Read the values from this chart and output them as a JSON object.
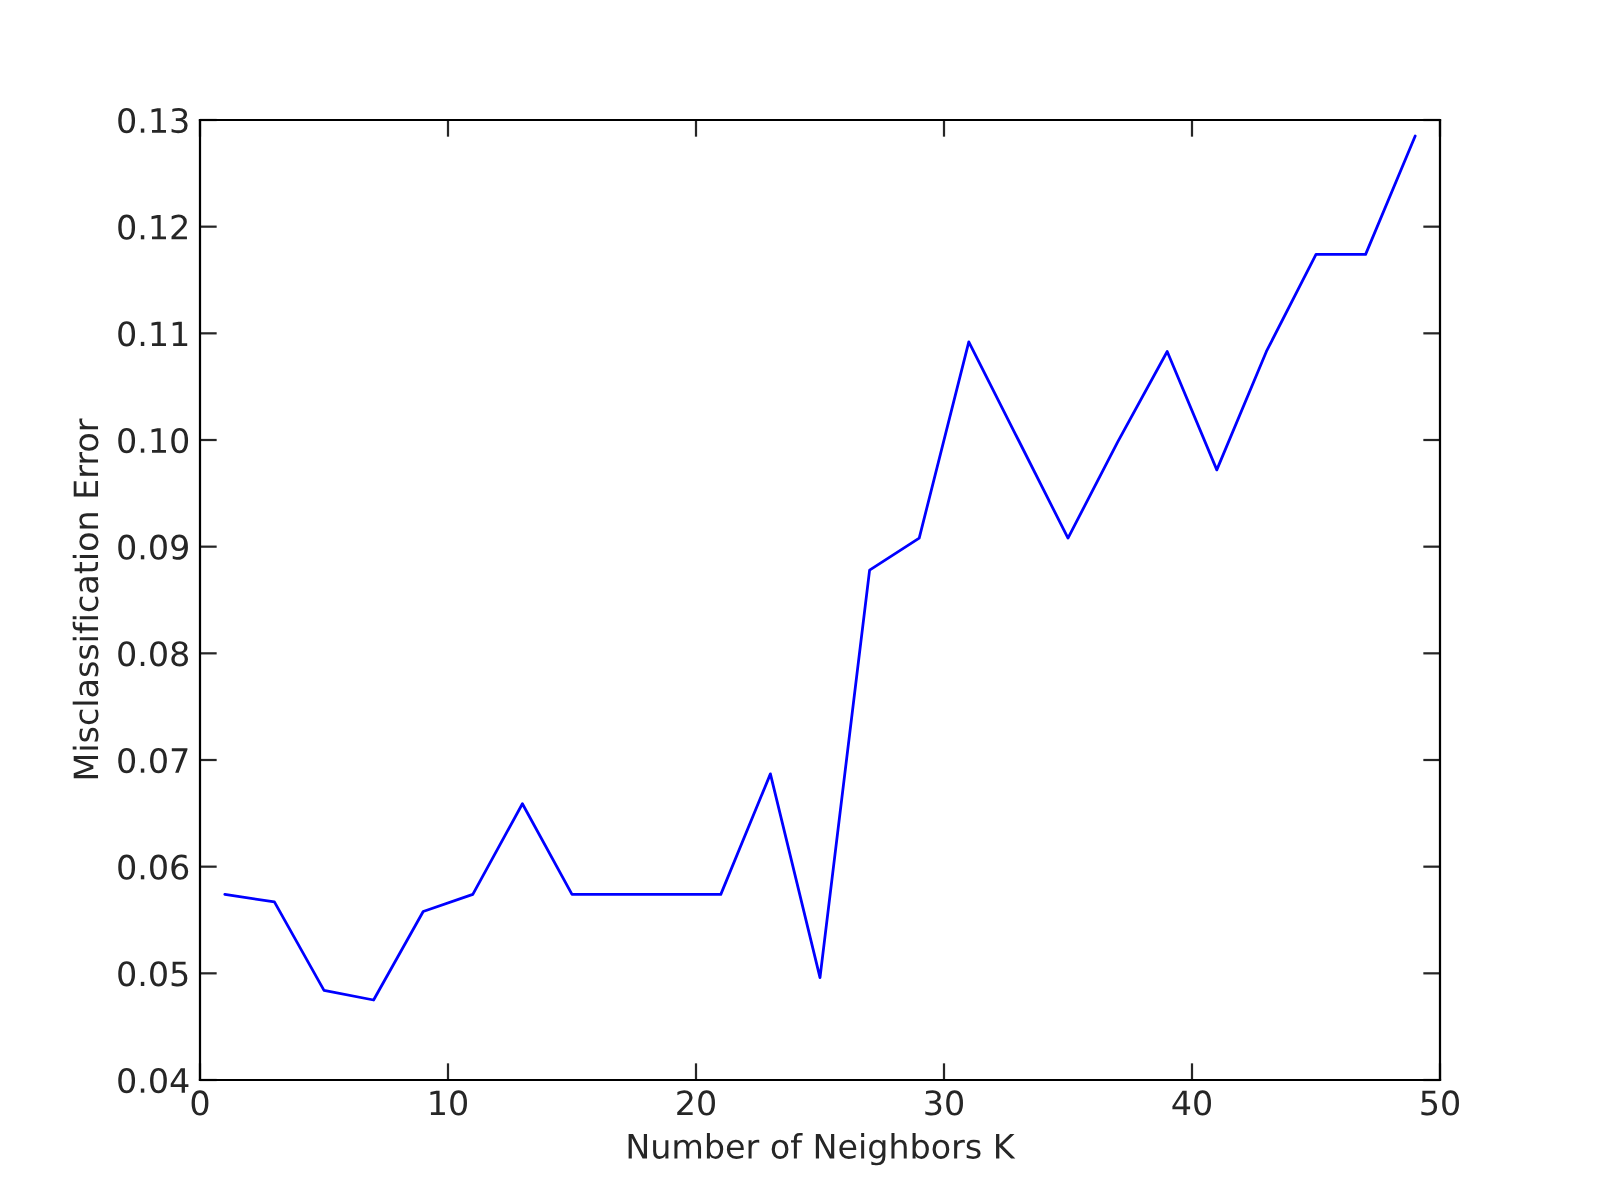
{
  "chart_data": {
    "type": "line",
    "xlabel": "Number of Neighbors K",
    "ylabel": "Misclassification Error",
    "x": [
      1,
      3,
      5,
      7,
      9,
      11,
      13,
      15,
      17,
      19,
      21,
      23,
      25,
      27,
      29,
      31,
      33,
      35,
      37,
      39,
      41,
      43,
      45,
      47,
      49
    ],
    "series": [
      {
        "color": "#0000ff",
        "values": [
          0.0574,
          0.0567,
          0.0484,
          0.0475,
          0.0558,
          0.0574,
          0.0659,
          0.0574,
          0.0574,
          0.0574,
          0.0574,
          0.0687,
          0.0496,
          0.0878,
          0.0908,
          0.1092,
          0.1,
          0.0908,
          0.0998,
          0.1083,
          0.0972,
          0.1083,
          0.1174,
          0.1174,
          0.1285
        ]
      }
    ],
    "xlim": [
      0,
      50
    ],
    "xticks": [
      0,
      10,
      20,
      30,
      40,
      50
    ],
    "ylim": [
      0.04,
      0.13
    ],
    "yticks": [
      0.04,
      0.05,
      0.06,
      0.07,
      0.08,
      0.09,
      {
        "value": 0.1,
        "label": "0.10"
      },
      0.11,
      0.12,
      0.13
    ],
    "grid": false,
    "marker": "none",
    "line_style": "solid"
  }
}
